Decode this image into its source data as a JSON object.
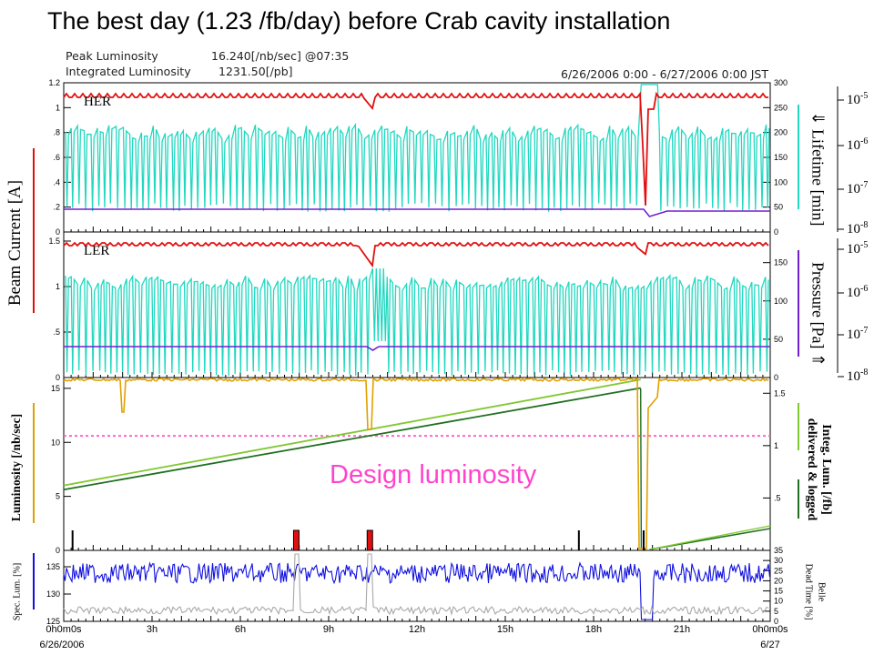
{
  "title": "The best day (1.23 /fb/day) before Crab cavity installation",
  "info": {
    "peak_label": "Peak Luminosity",
    "peak_value": "16.240[/nb/sec] @07:35",
    "integ_label": "Integrated Luminosity",
    "integ_value": "1231.50[/pb]",
    "date_range": "6/26/2006 0:00 - 6/27/2006 0:00 JST"
  },
  "labels": {
    "her": "HER",
    "ler": "LER",
    "beam_current": "Beam Current [A]",
    "lifetime": "⇓ Lifetime [min]",
    "pressure": "Pressure [Pa] ⇑",
    "luminosity": "Luminosity [/nb/sec]",
    "integ_lum_1": "Integ. Lum. [/fb]",
    "integ_lum_2": "delivered & logged",
    "design": "Design luminosity",
    "spec_lum": "Spec. Lum. [%]",
    "belle_1": "Belle",
    "belle_2": "Dead Time [%]"
  },
  "colors": {
    "current": "#e01010",
    "lifetime": "#20d8c0",
    "pressure": "#7020d0",
    "luminosity": "#e0a000",
    "integ_delivered": "#80c830",
    "integ_logged": "#207020",
    "design": "#ff66cc",
    "spec_lum": "#1010e0",
    "deadtime": "#a8a8a8"
  },
  "chart_data": [
    {
      "type": "line",
      "panel": "HER",
      "xlabel": "",
      "x_range_hours": [
        0,
        24
      ],
      "left_axis": {
        "ylim": [
          0,
          1.2
        ],
        "ticks": [
          "0",
          ".2",
          ".4",
          ".6",
          ".8",
          "1",
          "1.2"
        ]
      },
      "right_axis": {
        "ylim": [
          0,
          300
        ],
        "ticks": [
          "0",
          "50",
          "100",
          "150",
          "200",
          "250",
          "300"
        ]
      },
      "pressure_axis": [
        "10-5",
        "10-6",
        "10-7",
        "10-8"
      ],
      "series": [
        {
          "name": "Beam Current",
          "approx_level": 1.15,
          "dips_at_hours": [
            10.5,
            19.8
          ]
        },
        {
          "name": "Lifetime",
          "approx_range": [
            50,
            210
          ]
        },
        {
          "name": "Pressure",
          "approx_level": 0.2
        }
      ]
    },
    {
      "type": "line",
      "panel": "LER",
      "x_range_hours": [
        0,
        24
      ],
      "left_axis": {
        "ylim": [
          0,
          1.6
        ],
        "ticks": [
          "0",
          ".5",
          "1",
          "1.5"
        ]
      },
      "right_axis": {
        "ylim": [
          0,
          190
        ],
        "ticks": [
          "0",
          "50",
          "100",
          "150"
        ]
      },
      "pressure_axis": [
        "10-5",
        "10-6",
        "10-7",
        "10-8"
      ],
      "series": [
        {
          "name": "Beam Current",
          "approx_level": 1.6
        },
        {
          "name": "Lifetime",
          "approx_range": [
            0,
            150
          ]
        },
        {
          "name": "Pressure",
          "approx_level": 0.35
        }
      ]
    },
    {
      "type": "line",
      "panel": "Luminosity",
      "x_range_hours": [
        0,
        24
      ],
      "left_axis": {
        "ylim": [
          0,
          16
        ],
        "ticks": [
          "0",
          "5",
          "10",
          "15"
        ]
      },
      "right_axis": {
        "ylim": [
          0,
          1.65
        ],
        "ticks": [
          ".5",
          "1",
          "1.5"
        ]
      },
      "series": [
        {
          "name": "Luminosity",
          "approx_level": 15.8
        },
        {
          "name": "Integ. delivered",
          "x": [
            0,
            19.6
          ],
          "y": [
            0.62,
            1.63
          ]
        },
        {
          "name": "Integ. logged",
          "x": [
            0,
            19.6
          ],
          "y": [
            0.58,
            1.55
          ]
        }
      ],
      "design_luminosity": 10.6
    },
    {
      "type": "line",
      "panel": "Spec. Lum. / Dead Time",
      "x_range_hours": [
        0,
        24
      ],
      "left_axis": {
        "ylim": [
          125,
          138
        ],
        "ticks": [
          "125",
          "130",
          "135"
        ]
      },
      "right_axis": {
        "ylim": [
          0,
          35
        ],
        "ticks": [
          "0",
          "5",
          "10",
          "15",
          "20",
          "25",
          "30",
          "35"
        ]
      },
      "x_ticks": [
        "0h0m0s",
        "3h",
        "6h",
        "9h",
        "12h",
        "15h",
        "18h",
        "21h",
        "0h0m0s"
      ],
      "x_dates": [
        "6/26/2006",
        "6/27"
      ]
    }
  ]
}
